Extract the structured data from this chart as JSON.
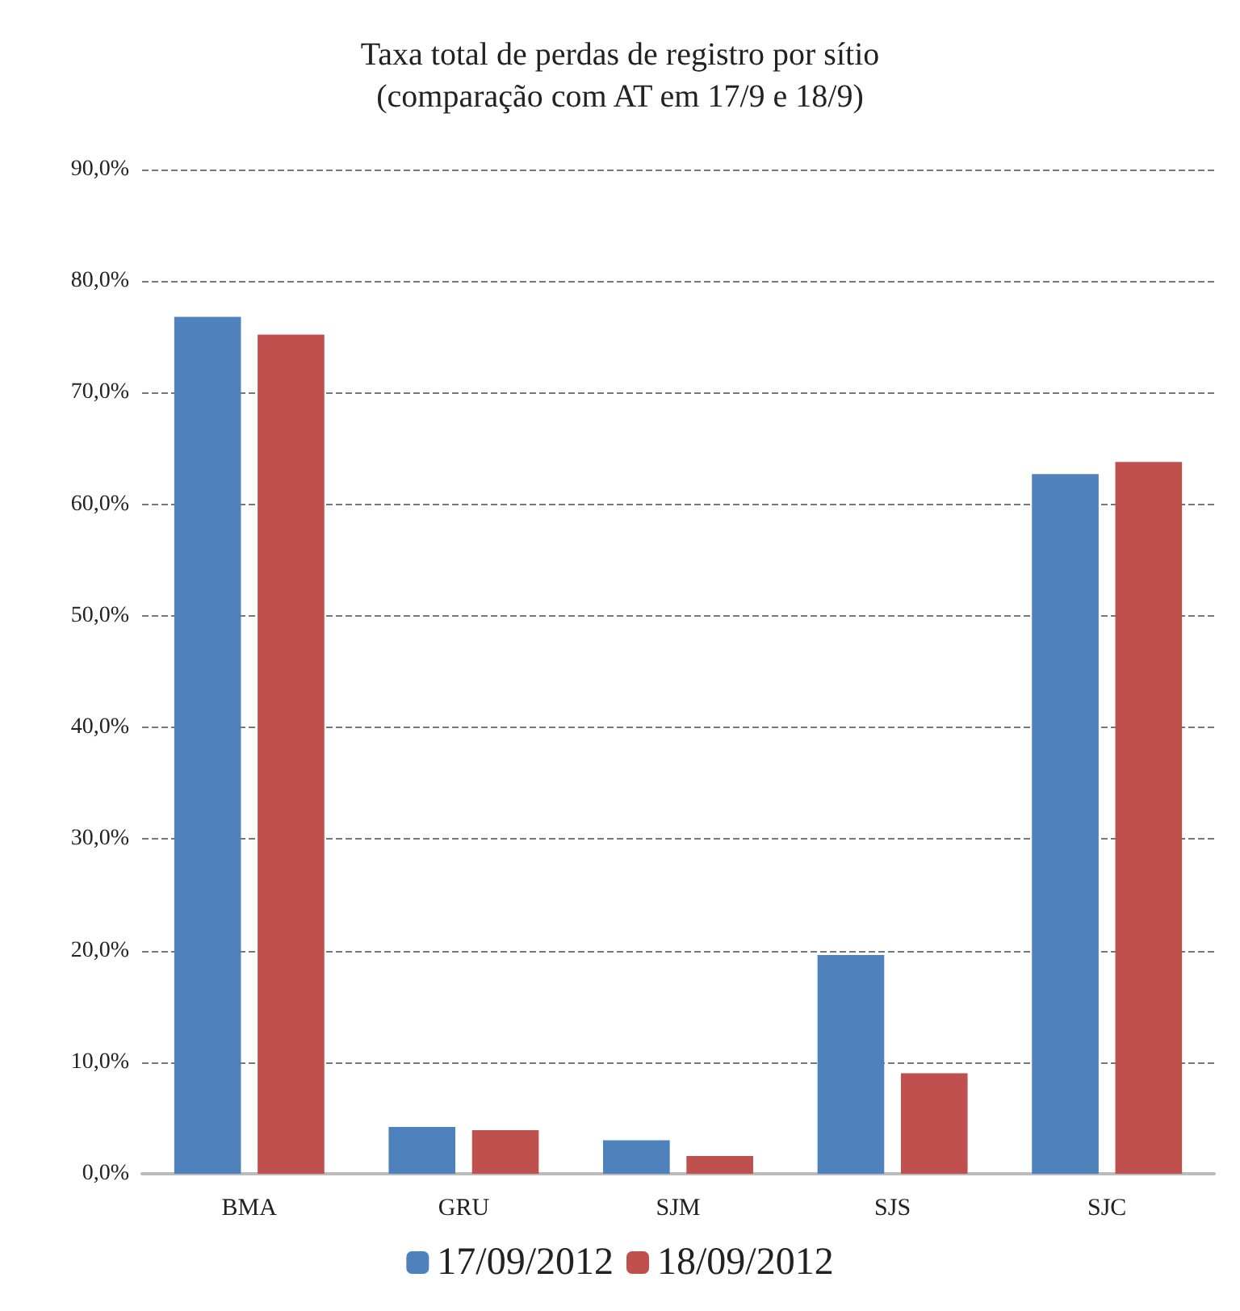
{
  "chart_data": {
    "type": "bar",
    "title": "Taxa total de perdas de registro por sítio\n(comparação com AT em 17/9 e 18/9)",
    "categories": [
      "BMA",
      "GRU",
      "SJM",
      "SJS",
      "SJC"
    ],
    "series": [
      {
        "name": "17/09/2012",
        "color": "#4f81bd",
        "values": [
          76.8,
          4.2,
          3.0,
          19.6,
          62.7
        ]
      },
      {
        "name": "18/09/2012",
        "color": "#c0504d",
        "values": [
          75.2,
          3.9,
          1.6,
          9.0,
          63.8
        ]
      }
    ],
    "ylim": [
      0,
      90
    ],
    "yticks": [
      {
        "value": 0,
        "label": "0,0%"
      },
      {
        "value": 10,
        "label": "10,0%"
      },
      {
        "value": 20,
        "label": "20,0%"
      },
      {
        "value": 30,
        "label": "30,0%"
      },
      {
        "value": 40,
        "label": "40,0%"
      },
      {
        "value": 50,
        "label": "50,0%"
      },
      {
        "value": 60,
        "label": "60,0%"
      },
      {
        "value": 70,
        "label": "70,0%"
      },
      {
        "value": 80,
        "label": "80,0%"
      },
      {
        "value": 90,
        "label": "90,0%"
      }
    ],
    "grid": "y",
    "legend": "bottom"
  }
}
